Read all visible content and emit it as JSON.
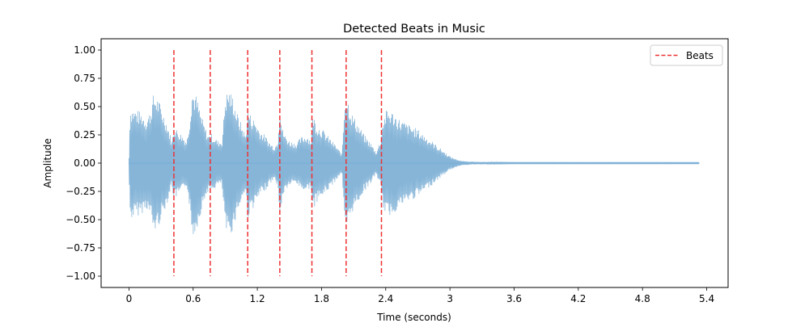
{
  "chart_data": {
    "type": "line",
    "title": "Detected Beats in Music",
    "xlabel": "Time (seconds)",
    "ylabel": "Amplitude",
    "xlim": [
      -0.26,
      5.6
    ],
    "ylim": [
      -1.1,
      1.1
    ],
    "x_ticks": [
      0,
      0.6,
      1.2,
      1.8,
      2.4,
      3,
      3.6,
      4.2,
      4.8,
      5.4
    ],
    "x_tick_labels": [
      "0",
      "0.6",
      "1.2",
      "1.8",
      "2.4",
      "3",
      "3.6",
      "4.2",
      "4.8",
      "5.4"
    ],
    "y_ticks": [
      1.0,
      0.75,
      0.5,
      0.25,
      0.0,
      -0.25,
      -0.5,
      -0.75,
      -1.0
    ],
    "y_tick_labels": [
      "1.00",
      "0.75",
      "0.50",
      "0.25",
      "0.00",
      "−0.25",
      "−0.50",
      "−0.75",
      "−1.00"
    ],
    "grid": false,
    "legend": {
      "placement": "top-right",
      "entries": [
        "Beats"
      ]
    },
    "beats": {
      "name": "Beats",
      "color": "#ee3333",
      "style": "dashed",
      "y_range": [
        -1.0,
        1.0
      ],
      "times": [
        0.42,
        0.76,
        1.11,
        1.41,
        1.71,
        2.03,
        2.36
      ]
    },
    "waveform": {
      "color": "#7fb1d6",
      "duration": 5.33,
      "envelope": [
        [
          0.0,
          0.05
        ],
        [
          0.01,
          0.5
        ],
        [
          0.06,
          0.48
        ],
        [
          0.12,
          0.45
        ],
        [
          0.16,
          0.4
        ],
        [
          0.2,
          0.47
        ],
        [
          0.23,
          0.62
        ],
        [
          0.27,
          0.58
        ],
        [
          0.32,
          0.45
        ],
        [
          0.36,
          0.35
        ],
        [
          0.4,
          0.2
        ],
        [
          0.42,
          0.33
        ],
        [
          0.45,
          0.3
        ],
        [
          0.5,
          0.25
        ],
        [
          0.54,
          0.2
        ],
        [
          0.57,
          0.42
        ],
        [
          0.59,
          0.66
        ],
        [
          0.63,
          0.6
        ],
        [
          0.67,
          0.45
        ],
        [
          0.7,
          0.35
        ],
        [
          0.74,
          0.25
        ],
        [
          0.76,
          0.27
        ],
        [
          0.79,
          0.24
        ],
        [
          0.83,
          0.2
        ],
        [
          0.87,
          0.2
        ],
        [
          0.9,
          0.6
        ],
        [
          0.93,
          0.66
        ],
        [
          0.97,
          0.6
        ],
        [
          1.01,
          0.45
        ],
        [
          1.05,
          0.35
        ],
        [
          1.09,
          0.25
        ],
        [
          1.11,
          0.5
        ],
        [
          1.14,
          0.42
        ],
        [
          1.18,
          0.38
        ],
        [
          1.22,
          0.3
        ],
        [
          1.27,
          0.25
        ],
        [
          1.32,
          0.18
        ],
        [
          1.36,
          0.15
        ],
        [
          1.39,
          0.2
        ],
        [
          1.41,
          0.55
        ],
        [
          1.43,
          0.32
        ],
        [
          1.46,
          0.25
        ],
        [
          1.5,
          0.2
        ],
        [
          1.56,
          0.18
        ],
        [
          1.62,
          0.24
        ],
        [
          1.67,
          0.25
        ],
        [
          1.7,
          0.2
        ],
        [
          1.72,
          0.45
        ],
        [
          1.75,
          0.35
        ],
        [
          1.81,
          0.3
        ],
        [
          1.88,
          0.22
        ],
        [
          1.94,
          0.15
        ],
        [
          1.99,
          0.08
        ],
        [
          2.02,
          0.62
        ],
        [
          2.04,
          0.6
        ],
        [
          2.08,
          0.45
        ],
        [
          2.14,
          0.35
        ],
        [
          2.2,
          0.25
        ],
        [
          2.26,
          0.18
        ],
        [
          2.31,
          0.1
        ],
        [
          2.35,
          0.2
        ],
        [
          2.37,
          0.38
        ],
        [
          2.41,
          0.48
        ],
        [
          2.46,
          0.46
        ],
        [
          2.52,
          0.4
        ],
        [
          2.6,
          0.35
        ],
        [
          2.7,
          0.3
        ],
        [
          2.8,
          0.22
        ],
        [
          2.9,
          0.14
        ],
        [
          3.0,
          0.06
        ],
        [
          3.1,
          0.02
        ],
        [
          3.25,
          0.01
        ],
        [
          3.6,
          0.004
        ],
        [
          5.33,
          0.003
        ]
      ]
    }
  }
}
